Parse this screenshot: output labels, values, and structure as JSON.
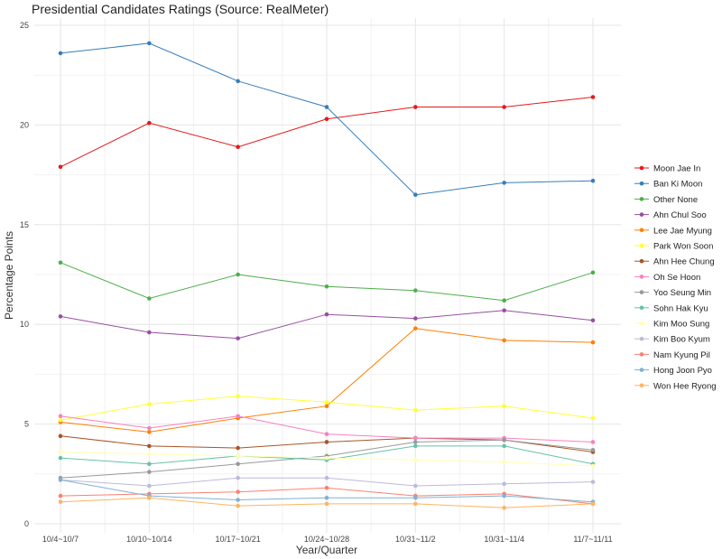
{
  "chart_data": {
    "type": "line",
    "title": "Presidential Candidates Ratings  (Source: RealMeter)",
    "xlabel": "Year/Quarter",
    "ylabel": "Percentage Points",
    "categories": [
      "10/4~10/7",
      "10/10~10/14",
      "10/17~10/21",
      "10/24~10/28",
      "10/31~11/2",
      "10/31~11/4",
      "11/7~11/11"
    ],
    "ylim": [
      0,
      25
    ],
    "yticks": [
      0,
      5,
      10,
      15,
      20,
      25
    ],
    "grid": true,
    "legend_position": "right",
    "series": [
      {
        "name": "Moon Jae In",
        "color": "#e41a1c",
        "values": [
          17.9,
          20.1,
          18.9,
          20.3,
          20.9,
          20.9,
          21.4
        ]
      },
      {
        "name": "Ban Ki Moon",
        "color": "#377eb8",
        "values": [
          23.6,
          24.1,
          22.2,
          20.9,
          16.5,
          17.1,
          17.2
        ]
      },
      {
        "name": "Other None",
        "color": "#4daf4a",
        "values": [
          13.1,
          11.3,
          12.5,
          11.9,
          11.7,
          11.2,
          12.6
        ]
      },
      {
        "name": "Ahn Chul Soo",
        "color": "#984ea3",
        "values": [
          10.4,
          9.6,
          9.3,
          10.5,
          10.3,
          10.7,
          10.2
        ]
      },
      {
        "name": "Lee Jae Myung",
        "color": "#ff7f00",
        "values": [
          5.1,
          4.6,
          5.3,
          5.9,
          9.8,
          9.2,
          9.1
        ]
      },
      {
        "name": "Park Won Soon",
        "color": "#ffff33",
        "values": [
          5.2,
          6.0,
          6.4,
          6.1,
          5.7,
          5.9,
          5.3
        ]
      },
      {
        "name": "Ahn Hee Chung",
        "color": "#a65628",
        "values": [
          4.4,
          3.9,
          3.8,
          4.1,
          4.3,
          4.2,
          3.6
        ]
      },
      {
        "name": "Oh Se Hoon",
        "color": "#f781bf",
        "values": [
          5.4,
          4.8,
          5.4,
          4.5,
          4.3,
          4.3,
          4.1
        ]
      },
      {
        "name": "Yoo Seung Min",
        "color": "#999999",
        "values": [
          2.3,
          2.6,
          3.0,
          3.4,
          4.1,
          4.2,
          3.7
        ]
      },
      {
        "name": "Sohn Hak Kyu",
        "color": "#66c2a5",
        "values": [
          3.3,
          3.0,
          3.4,
          3.2,
          3.9,
          3.9,
          3.0
        ]
      },
      {
        "name": "Kim Moo Sung",
        "color": "#ffffb3",
        "values": [
          3.6,
          3.5,
          3.4,
          3.3,
          3.2,
          3.1,
          2.9
        ]
      },
      {
        "name": "Kim Boo Kyum",
        "color": "#bebada",
        "values": [
          2.2,
          1.9,
          2.3,
          2.3,
          1.9,
          2.0,
          2.1
        ]
      },
      {
        "name": "Nam Kyung Pil",
        "color": "#fb8072",
        "values": [
          1.4,
          1.5,
          1.6,
          1.8,
          1.4,
          1.5,
          1.0
        ]
      },
      {
        "name": "Hong Joon Pyo",
        "color": "#80b1d3",
        "values": [
          2.2,
          1.4,
          1.2,
          1.3,
          1.3,
          1.4,
          1.1
        ]
      },
      {
        "name": "Won Hee Ryong",
        "color": "#fdb462",
        "values": [
          1.1,
          1.3,
          0.9,
          1.0,
          1.0,
          0.8,
          1.0
        ]
      }
    ]
  }
}
